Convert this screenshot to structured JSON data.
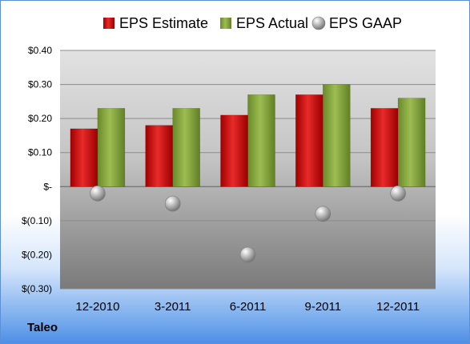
{
  "company": "Taleo",
  "chart_data": {
    "type": "bar",
    "categories": [
      "12-2010",
      "3-2011",
      "6-2011",
      "9-2011",
      "12-2011"
    ],
    "series": [
      {
        "name": "EPS Estimate",
        "kind": "bar",
        "color": "#d11f1f",
        "values": [
          0.17,
          0.18,
          0.21,
          0.27,
          0.23
        ]
      },
      {
        "name": "EPS Actual",
        "kind": "bar",
        "color": "#8aab3c",
        "values": [
          0.23,
          0.23,
          0.27,
          0.3,
          0.26
        ]
      },
      {
        "name": "EPS GAAP",
        "kind": "marker",
        "color": "#a0a0a0",
        "values": [
          -0.02,
          -0.05,
          -0.2,
          -0.08,
          -0.02
        ]
      }
    ],
    "yticks": [
      {
        "value": 0.4,
        "label": "$0.40"
      },
      {
        "value": 0.3,
        "label": "$0.30"
      },
      {
        "value": 0.2,
        "label": "$0.20"
      },
      {
        "value": 0.1,
        "label": "$0.10"
      },
      {
        "value": 0.0,
        "label": "$-"
      },
      {
        "value": -0.1,
        "label": "$(0.10)"
      },
      {
        "value": -0.2,
        "label": "$(0.20)"
      },
      {
        "value": -0.3,
        "label": "$(0.30)"
      }
    ],
    "ylim": [
      -0.3,
      0.4
    ],
    "grid": true,
    "legend_position": "top"
  }
}
